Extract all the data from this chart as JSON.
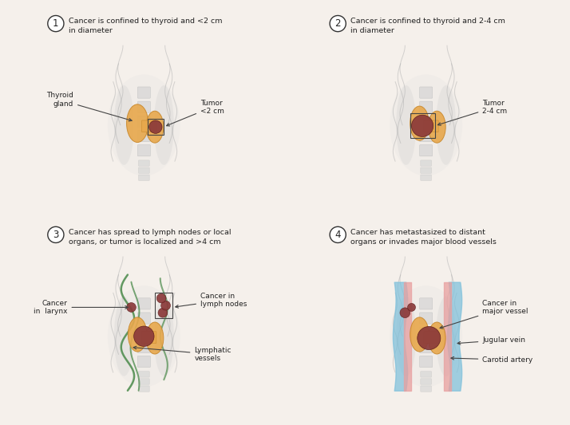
{
  "bg_color": "#f5f0eb",
  "stage_texts": [
    "Cancer is confined to thyroid and <2 cm\nin diameter",
    "Cancer is confined to thyroid and 2-4 cm\nin diameter",
    "Cancer has spread to lymph nodes or local\norgans, or tumor is localized and >4 cm",
    "Cancer has metastasized to distant\norgans or invades major blood vessels"
  ],
  "stage_numbers": [
    "1",
    "2",
    "3",
    "4"
  ],
  "thyroid_color": "#e8a84c",
  "thyroid_edge": "#c8872a",
  "tumor_color": "#8b3a3a",
  "lymph_color": "#8b3a3a",
  "vessel_blue": "#7bbfdb",
  "vessel_pink": "#e8a0a0",
  "vessel_green": "#4a8a4a",
  "tissue_gray": "#c0c0c0",
  "spine_gray": "#d0d0d0",
  "annotation_color": "#222222",
  "circle_edge": "#333333",
  "arrow_color": "#444444"
}
